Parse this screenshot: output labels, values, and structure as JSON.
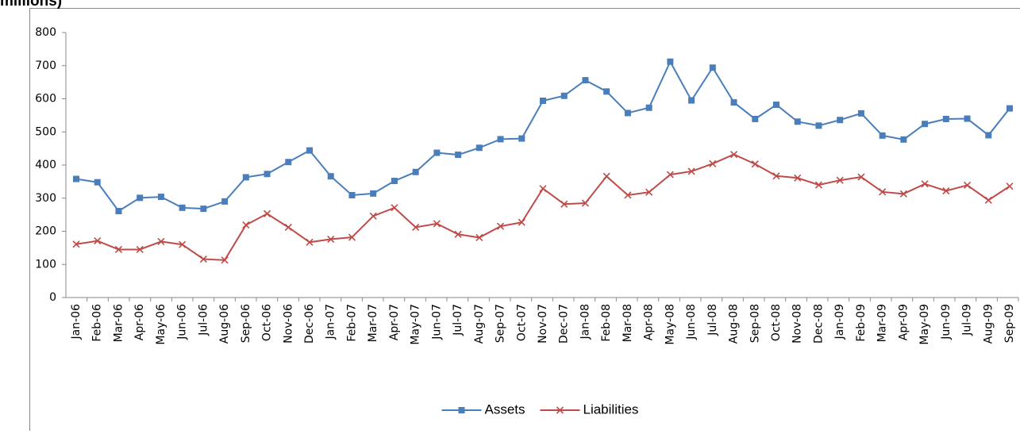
{
  "chart_data": {
    "type": "line",
    "title": "millions)",
    "categories": [
      "Jan-06",
      "Feb-06",
      "Mar-06",
      "Apr-06",
      "May-06",
      "Jun-06",
      "Jul-06",
      "Aug-06",
      "Sep-06",
      "Oct-06",
      "Nov-06",
      "Dec-06",
      "Jan-07",
      "Feb-07",
      "Mar-07",
      "Apr-07",
      "May-07",
      "Jun-07",
      "Jul-07",
      "Aug-07",
      "Sep-07",
      "Oct-07",
      "Nov-07",
      "Dec-07",
      "Jan-08",
      "Feb-08",
      "Mar-08",
      "Apr-08",
      "May-08",
      "Jun-08",
      "Jul-08",
      "Aug-08",
      "Sep-08",
      "Oct-08",
      "Nov-08",
      "Dec-08",
      "Jan-09",
      "Feb-09",
      "Mar-09",
      "Apr-09",
      "May-09",
      "Jun-09",
      "Jul-09",
      "Aug-09",
      "Sep-09"
    ],
    "series": [
      {
        "name": "Assets",
        "color": "#4a7ebb",
        "marker": "square",
        "values": [
          358,
          348,
          261,
          301,
          304,
          271,
          268,
          290,
          363,
          373,
          409,
          444,
          366,
          309,
          314,
          352,
          379,
          437,
          431,
          452,
          478,
          480,
          594,
          609,
          656,
          622,
          557,
          573,
          712,
          595,
          694,
          589,
          539,
          582,
          531,
          519,
          536,
          556,
          489,
          477,
          524,
          539,
          540,
          490,
          571
        ]
      },
      {
        "name": "Liabilities",
        "color": "#be4b48",
        "marker": "x",
        "values": [
          161,
          171,
          145,
          145,
          169,
          160,
          116,
          113,
          219,
          253,
          212,
          167,
          176,
          182,
          246,
          271,
          212,
          223,
          191,
          181,
          215,
          227,
          329,
          282,
          285,
          366,
          309,
          318,
          371,
          381,
          404,
          432,
          403,
          367,
          361,
          340,
          354,
          364,
          319,
          313,
          343,
          322,
          339,
          294,
          336
        ]
      }
    ],
    "ylim": [
      0,
      800
    ],
    "yticks": [
      0,
      100,
      200,
      300,
      400,
      500,
      600,
      700,
      800
    ],
    "grid": false,
    "legend": "bottom"
  }
}
